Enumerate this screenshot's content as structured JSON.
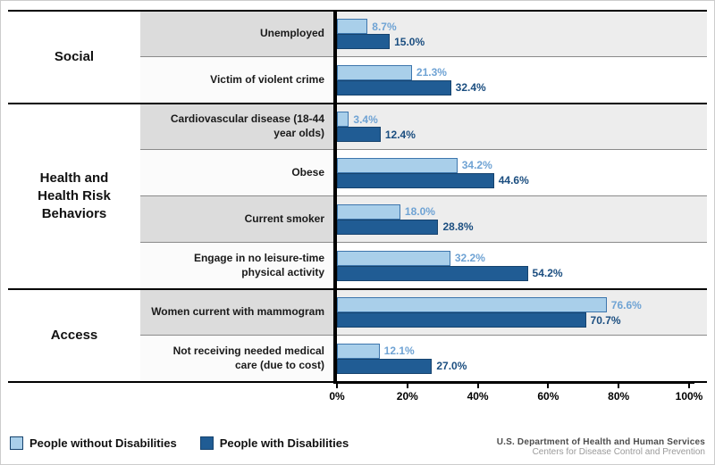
{
  "chart_data": {
    "type": "bar",
    "orientation": "horizontal",
    "title": "",
    "xlabel": "",
    "ylabel": "",
    "x_axis": {
      "min": 0,
      "max": 100,
      "ticks": [
        "0%",
        "20%",
        "40%",
        "60%",
        "80%",
        "100%"
      ],
      "grid": false
    },
    "legend": [
      {
        "label": "People without Disabilities",
        "color": "#a9cfea",
        "border": "#16436e"
      },
      {
        "label": "People with Disabilities",
        "color": "#205c94",
        "border": "#16436e"
      }
    ],
    "legend_position": "bottom-left",
    "groups": [
      {
        "label": "Social",
        "span": 2
      },
      {
        "label": "Health and Health Risk Behaviors",
        "span": 4
      },
      {
        "label": "Access",
        "span": 2
      }
    ],
    "rows": [
      {
        "group": "Social",
        "label": "Unemployed",
        "without": 8.7,
        "with": 15.0,
        "without_label": "8.7%",
        "with_label": "15.0%",
        "shaded": true
      },
      {
        "group": "Social",
        "label": "Victim of violent crime",
        "without": 21.3,
        "with": 32.4,
        "without_label": "21.3%",
        "with_label": "32.4%",
        "shaded": false
      },
      {
        "group": "Health and Health Risk Behaviors",
        "label": "Cardiovascular disease (18-44 year olds)",
        "without": 3.4,
        "with": 12.4,
        "without_label": "3.4%",
        "with_label": "12.4%",
        "shaded": true
      },
      {
        "group": "Health and Health Risk Behaviors",
        "label": "Obese",
        "without": 34.2,
        "with": 44.6,
        "without_label": "34.2%",
        "with_label": "44.6%",
        "shaded": false
      },
      {
        "group": "Health and Health Risk Behaviors",
        "label": "Current smoker",
        "without": 18.0,
        "with": 28.8,
        "without_label": "18.0%",
        "with_label": "28.8%",
        "shaded": true
      },
      {
        "group": "Health and Health Risk Behaviors",
        "label": "Engage in no leisure-time physical activity",
        "without": 32.2,
        "with": 54.2,
        "without_label": "32.2%",
        "with_label": "54.2%",
        "shaded": false
      },
      {
        "group": "Access",
        "label": "Women current with mammogram",
        "without": 76.6,
        "with": 70.7,
        "without_label": "76.6%",
        "with_label": "70.7%",
        "shaded": true
      },
      {
        "group": "Access",
        "label": "Not receiving needed medical care (due to cost)",
        "without": 12.1,
        "with": 27.0,
        "without_label": "12.1%",
        "with_label": "27.0%",
        "shaded": false
      }
    ]
  },
  "footer": {
    "line1": "U.S. Department of Health and Human Services",
    "line2": "Centers for Disease Control and Prevention"
  }
}
